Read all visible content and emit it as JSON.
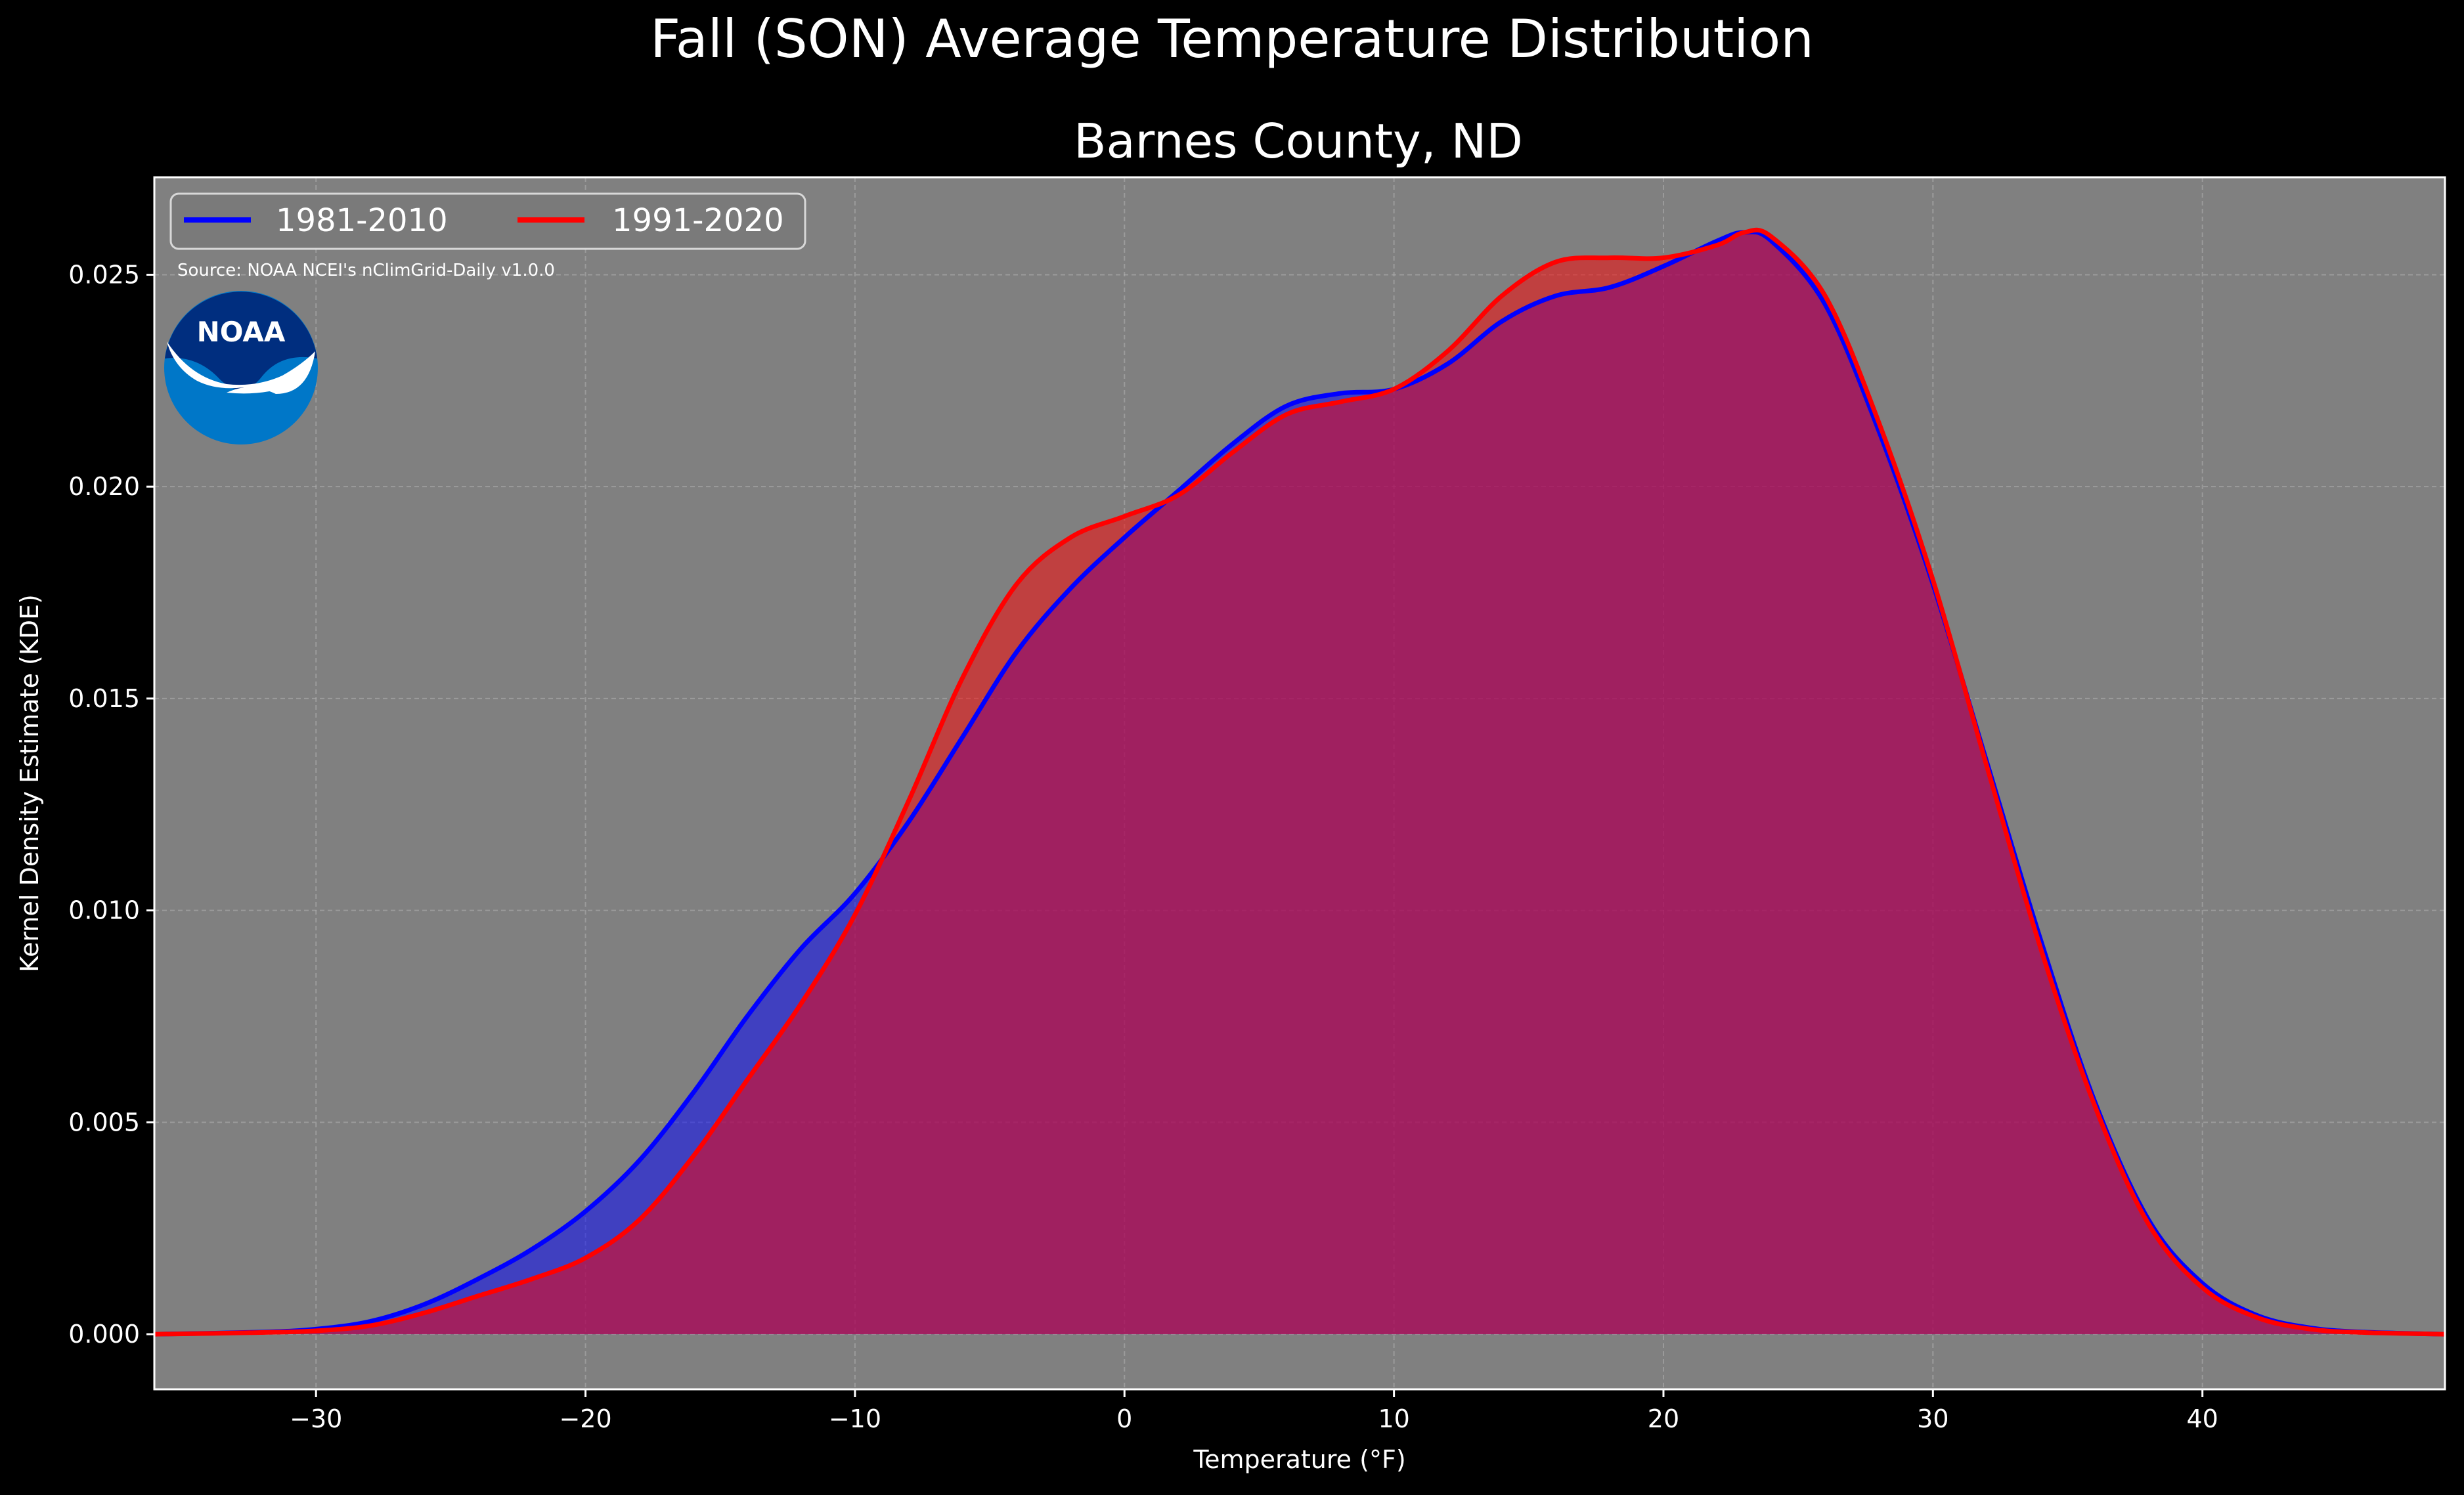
{
  "chart_data": {
    "type": "area",
    "title": "Fall (SON) Average Temperature Distribution",
    "subtitle": "Barnes County, ND",
    "xlabel": "Temperature (°F)",
    "ylabel": "Kernel Density Estimate (KDE)",
    "xlim": [
      -36,
      49
    ],
    "ylim": [
      -0.0013,
      0.0273
    ],
    "xticks": [
      -30,
      -20,
      -10,
      0,
      10,
      20,
      30,
      40
    ],
    "xtick_labels": [
      "−30",
      "−20",
      "−10",
      "0",
      "10",
      "20",
      "30",
      "40"
    ],
    "yticks": [
      0.0,
      0.005,
      0.01,
      0.015,
      0.02,
      0.025
    ],
    "ytick_labels": [
      "0.000",
      "0.005",
      "0.010",
      "0.015",
      "0.020",
      "0.025"
    ],
    "grid": true,
    "legend_position": "top-left",
    "source_note": "Source: NOAA NCEI's nClimGrid-Daily v1.0.0",
    "logo": "NOAA",
    "colors": {
      "figure_bg": "#000000",
      "axes_bg": "#808080",
      "grid": "#b0b0b0"
    },
    "series": [
      {
        "name": "1981-2010",
        "color": "#0000ff",
        "fill": "#0000ff",
        "x": [
          -36,
          -32,
          -30,
          -28,
          -26,
          -24,
          -22,
          -20,
          -18,
          -16,
          -14,
          -12,
          -10,
          -8,
          -6,
          -4,
          -2,
          0,
          2,
          4,
          6,
          8,
          10,
          12,
          14,
          16,
          18,
          20,
          22,
          23,
          24,
          26,
          28,
          30,
          32,
          34,
          36,
          38,
          40,
          42,
          44,
          46,
          49
        ],
        "y": [
          0.0,
          5e-05,
          0.00012,
          0.0003,
          0.0007,
          0.0013,
          0.002,
          0.0029,
          0.0041,
          0.0057,
          0.0075,
          0.0091,
          0.0104,
          0.0121,
          0.0141,
          0.0161,
          0.0176,
          0.0188,
          0.0199,
          0.021,
          0.0219,
          0.0222,
          0.0223,
          0.0229,
          0.0239,
          0.0245,
          0.0247,
          0.0252,
          0.0258,
          0.026,
          0.0258,
          0.0243,
          0.0213,
          0.0177,
          0.0135,
          0.0093,
          0.0055,
          0.0027,
          0.0012,
          0.00045,
          0.00015,
          5e-05,
          0.0
        ]
      },
      {
        "name": "1991-2020",
        "color": "#ff0000",
        "fill": "#ff0000",
        "x": [
          -36,
          -32,
          -30,
          -28,
          -26,
          -24,
          -22,
          -20,
          -18,
          -16,
          -14,
          -12,
          -10,
          -8,
          -6,
          -4,
          -2,
          0,
          2,
          4,
          6,
          8,
          10,
          12,
          14,
          16,
          18,
          20,
          22,
          23,
          24,
          26,
          28,
          30,
          32,
          34,
          36,
          38,
          40,
          42,
          44,
          46,
          49
        ],
        "y": [
          0.0,
          4e-05,
          8e-05,
          0.0002,
          0.0005,
          0.0009,
          0.0013,
          0.0018,
          0.0027,
          0.0042,
          0.006,
          0.0078,
          0.0099,
          0.0126,
          0.0155,
          0.0177,
          0.0188,
          0.0193,
          0.0198,
          0.0208,
          0.0217,
          0.022,
          0.0223,
          0.0232,
          0.0245,
          0.0253,
          0.0254,
          0.0254,
          0.0257,
          0.026,
          0.0259,
          0.0245,
          0.0215,
          0.0178,
          0.0134,
          0.0091,
          0.0054,
          0.0026,
          0.0011,
          0.0004,
          0.00012,
          4e-05,
          0.0
        ]
      }
    ]
  }
}
